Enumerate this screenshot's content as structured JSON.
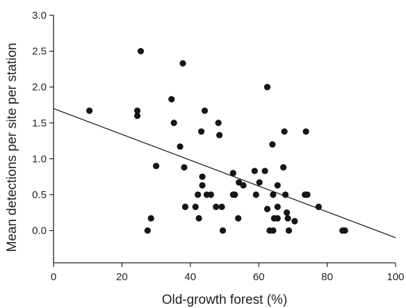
{
  "chart_data": {
    "type": "scatter",
    "title": "",
    "xlabel": "Old-growth forest (%)",
    "ylabel": "Mean detections per site per station",
    "xlim": [
      0,
      100
    ],
    "ylim": [
      -0.45,
      3.0
    ],
    "x_ticks": [
      0,
      20,
      40,
      60,
      80,
      100
    ],
    "y_ticks": [
      0.0,
      0.5,
      1.0,
      1.5,
      2.0,
      2.5,
      3.0
    ],
    "x_tick_labels": [
      "0",
      "20",
      "40",
      "60",
      "80",
      "100"
    ],
    "y_tick_labels": [
      "0.0",
      "0.5",
      "1.0",
      "1.5",
      "2.0",
      "2.5",
      "3.0"
    ],
    "grid": false,
    "legend": "none",
    "series": [
      {
        "points": [
          [
            10.5,
            1.67
          ],
          [
            24.5,
            1.67
          ],
          [
            24.5,
            1.6
          ],
          [
            25.5,
            2.5
          ],
          [
            27.5,
            0.0
          ],
          [
            28.5,
            0.17
          ],
          [
            30.0,
            0.9
          ],
          [
            34.5,
            1.83
          ],
          [
            35.2,
            1.5
          ],
          [
            37.0,
            1.17
          ],
          [
            37.8,
            2.33
          ],
          [
            38.2,
            0.88
          ],
          [
            38.5,
            0.33
          ],
          [
            41.5,
            0.33
          ],
          [
            42.2,
            0.5
          ],
          [
            42.5,
            0.17
          ],
          [
            43.2,
            1.38
          ],
          [
            43.5,
            0.75
          ],
          [
            43.5,
            0.63
          ],
          [
            44.2,
            1.67
          ],
          [
            44.8,
            0.5
          ],
          [
            46.0,
            0.5
          ],
          [
            47.5,
            0.33
          ],
          [
            48.2,
            1.5
          ],
          [
            48.5,
            1.33
          ],
          [
            49.2,
            0.33
          ],
          [
            49.5,
            0.0
          ],
          [
            52.5,
            0.8
          ],
          [
            52.5,
            0.5
          ],
          [
            53.0,
            0.5
          ],
          [
            54.0,
            0.17
          ],
          [
            54.2,
            0.67
          ],
          [
            55.5,
            0.63
          ],
          [
            58.8,
            0.83
          ],
          [
            59.2,
            0.5
          ],
          [
            60.2,
            0.67
          ],
          [
            61.8,
            0.83
          ],
          [
            62.5,
            0.3
          ],
          [
            62.5,
            2.0
          ],
          [
            63.2,
            0.0
          ],
          [
            64.0,
            1.2
          ],
          [
            64.2,
            0.5
          ],
          [
            64.2,
            0.0
          ],
          [
            64.5,
            0.17
          ],
          [
            65.5,
            0.63
          ],
          [
            65.5,
            0.17
          ],
          [
            65.5,
            0.33
          ],
          [
            67.2,
            0.88
          ],
          [
            67.5,
            1.38
          ],
          [
            67.8,
            0.5
          ],
          [
            68.2,
            0.25
          ],
          [
            68.5,
            0.17
          ],
          [
            68.8,
            0.0
          ],
          [
            70.5,
            0.13
          ],
          [
            73.5,
            0.5
          ],
          [
            73.8,
            1.38
          ],
          [
            74.2,
            0.5
          ],
          [
            77.5,
            0.33
          ],
          [
            84.5,
            0.0
          ],
          [
            85.2,
            0.0
          ]
        ]
      }
    ],
    "trend_line": {
      "x": [
        0,
        100
      ],
      "y": [
        1.7,
        -0.1
      ]
    }
  }
}
